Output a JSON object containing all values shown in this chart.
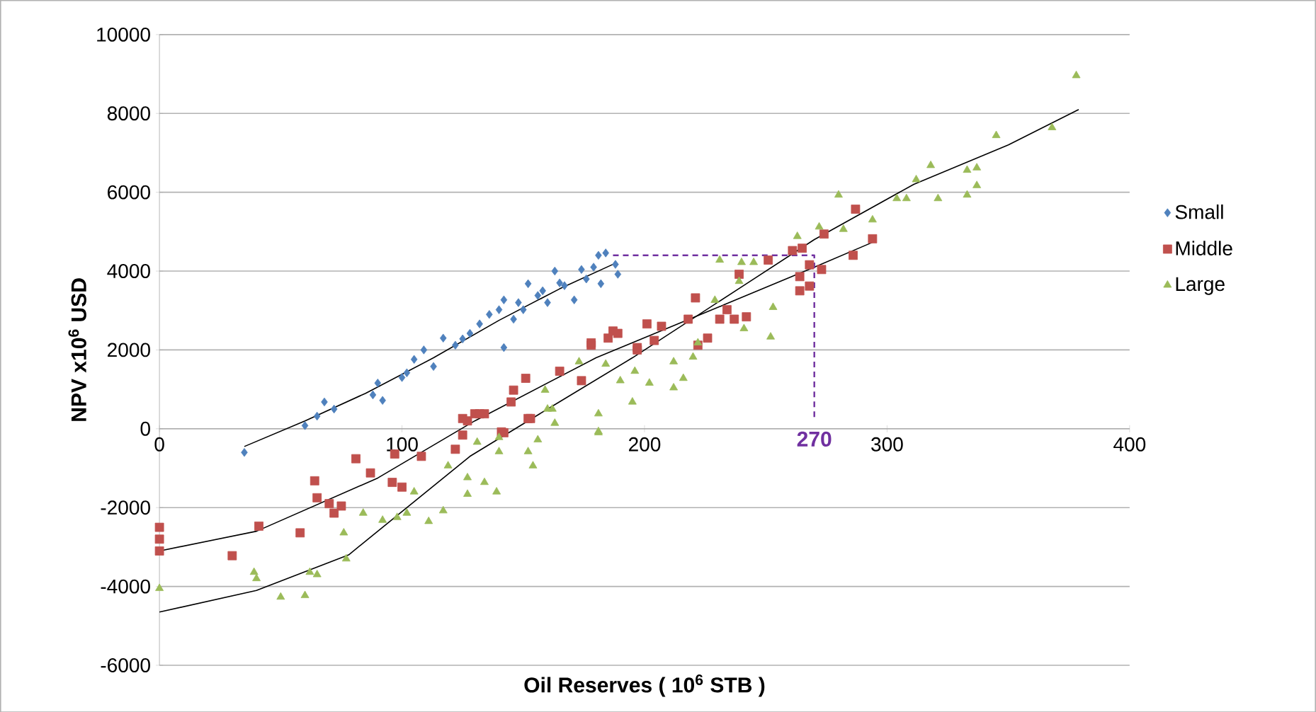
{
  "chart_data": {
    "type": "scatter",
    "xlabel": "Oil Reserves ( 10$^{6}$ STB )",
    "ylabel": "NPV x10$^{6}$ USD",
    "xlim": [
      0,
      400
    ],
    "xticks": [
      0,
      100,
      200,
      300,
      400
    ],
    "ylim": [
      -6000,
      10000
    ],
    "yticks": [
      -6000,
      -4000,
      -2000,
      0,
      2000,
      4000,
      6000,
      8000,
      10000
    ],
    "grid": "y",
    "legend": "right",
    "series": [
      {
        "name": "Small",
        "marker": "diamond",
        "color": "#4f81bd",
        "x": [
          35,
          60,
          65,
          68,
          72,
          88,
          92,
          90,
          100,
          102,
          105,
          109,
          113,
          117,
          122,
          125,
          128,
          132,
          136,
          140,
          142,
          142,
          146,
          148,
          150,
          152,
          156,
          158,
          160,
          163,
          165,
          167,
          171,
          174,
          176,
          179,
          181,
          182,
          184,
          188,
          189
        ],
        "values": [
          -600,
          80,
          320,
          680,
          500,
          860,
          720,
          1160,
          1300,
          1420,
          1760,
          2000,
          1580,
          2300,
          2120,
          2280,
          2420,
          2660,
          2900,
          3020,
          2060,
          3270,
          2780,
          3200,
          3020,
          3680,
          3380,
          3500,
          3200,
          4000,
          3700,
          3630,
          3270,
          4040,
          3800,
          4100,
          4400,
          3680,
          4460,
          4170,
          3920
        ]
      },
      {
        "name": "Middle",
        "marker": "square",
        "color": "#c0504d",
        "x": [
          0,
          0,
          0,
          30,
          41,
          58,
          64,
          65,
          70,
          72,
          75,
          81,
          87,
          96,
          97,
          100,
          108,
          122,
          125,
          125,
          127,
          130,
          132,
          134,
          141,
          142,
          145,
          146,
          151,
          152,
          153,
          165,
          174,
          178,
          178,
          185,
          187,
          189,
          197,
          197,
          201,
          204,
          207,
          218,
          221,
          222,
          226,
          231,
          234,
          237,
          239,
          242,
          251,
          261,
          264,
          264,
          265,
          268,
          268,
          273,
          274,
          286,
          287,
          294
        ],
        "values": [
          -2500,
          -2800,
          -3100,
          -3220,
          -2470,
          -2640,
          -1320,
          -1750,
          -1900,
          -2140,
          -1960,
          -760,
          -1120,
          -1360,
          -640,
          -1480,
          -700,
          -520,
          -160,
          260,
          200,
          380,
          380,
          380,
          -80,
          -100,
          680,
          980,
          1280,
          260,
          260,
          1460,
          1220,
          2120,
          2180,
          2300,
          2480,
          2420,
          2000,
          2060,
          2660,
          2240,
          2600,
          2780,
          3320,
          2120,
          2300,
          2780,
          3020,
          2780,
          3920,
          2840,
          4280,
          4520,
          3860,
          3500,
          4580,
          4160,
          3620,
          4040,
          4940,
          4400,
          5570,
          4820
        ]
      },
      {
        "name": "Large",
        "marker": "triangle",
        "color": "#9bbb59",
        "x": [
          0,
          39,
          40,
          50,
          60,
          62,
          65,
          76,
          77,
          84,
          92,
          98,
          102,
          105,
          111,
          117,
          119,
          127,
          127,
          131,
          134,
          139,
          140,
          140,
          152,
          154,
          156,
          159,
          160,
          162,
          163,
          173,
          181,
          181,
          181,
          184,
          190,
          195,
          196,
          202,
          212,
          212,
          216,
          220,
          222,
          229,
          231,
          239,
          240,
          241,
          245,
          252,
          253,
          263,
          272,
          280,
          282,
          294,
          304,
          308,
          312,
          318,
          321,
          333,
          333,
          337,
          337,
          345,
          368,
          378
        ],
        "values": [
          -4050,
          -3640,
          -3800,
          -4270,
          -4230,
          -3640,
          -3700,
          -2640,
          -3300,
          -2140,
          -2320,
          -2250,
          -2140,
          -1600,
          -2350,
          -2080,
          -940,
          -1660,
          -1240,
          -340,
          -1360,
          -1600,
          -580,
          -220,
          -580,
          -940,
          -280,
          980,
          500,
          500,
          140,
          1700,
          380,
          -100,
          -70,
          1640,
          1220,
          680,
          1460,
          1160,
          1040,
          1700,
          1280,
          1820,
          2180,
          3260,
          4280,
          3740,
          4220,
          2540,
          4220,
          2330,
          3080,
          4880,
          5120,
          5930,
          5060,
          5300,
          5840,
          5840,
          6320,
          6680,
          5840,
          6560,
          5930,
          6620,
          6170,
          7440,
          7640,
          8960
        ]
      },
      {
        "type": "line",
        "marker": "none",
        "line_style": "solid",
        "color": "#000000",
        "x": [
          35,
          60,
          85,
          113,
          140,
          165,
          188
        ],
        "values": [
          -450,
          200,
          900,
          1800,
          2750,
          3550,
          4200
        ]
      },
      {
        "type": "line",
        "marker": "none",
        "line_style": "solid",
        "color": "#000000",
        "x": [
          0,
          40,
          90,
          130,
          180,
          233,
          270,
          294
        ],
        "values": [
          -3100,
          -2600,
          -1250,
          200,
          1800,
          3150,
          4100,
          4730
        ]
      },
      {
        "type": "line",
        "marker": "none",
        "line_style": "solid",
        "color": "#000000",
        "x": [
          0,
          40,
          78,
          128,
          160,
          195,
          240,
          270,
          311,
          350,
          379
        ],
        "values": [
          -4650,
          -4100,
          -3200,
          -700,
          500,
          1800,
          3600,
          4800,
          6200,
          7200,
          8100
        ]
      },
      {
        "type": "line",
        "marker": "none",
        "line_style": "dashed",
        "color": "#7030a0",
        "x": [
          187,
          270,
          270
        ],
        "values": [
          4400,
          4400,
          200
        ]
      }
    ],
    "annotations": [
      "270"
    ]
  }
}
